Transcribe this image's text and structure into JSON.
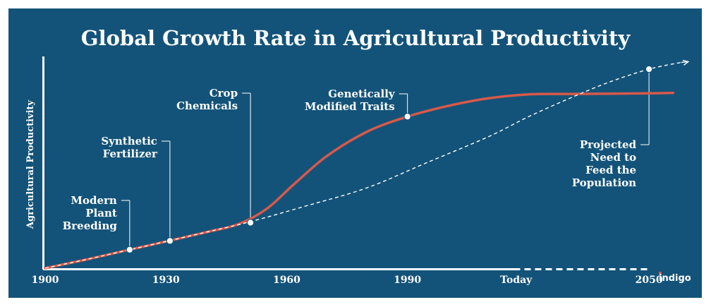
{
  "colors": {
    "background": "#135379",
    "productivity_line": "#d8594a",
    "projection_line": "#ffffff",
    "text": "#ffffff",
    "logo_dot": "#d8594a"
  },
  "logo": {
    "text": "indigo"
  },
  "chart_data": {
    "type": "line",
    "title": "Global Growth Rate in Agricultural Productivity",
    "xlabel": "",
    "ylabel": "Agricultural Productivity",
    "x_ticks": [
      {
        "label": "1900",
        "x": 1900
      },
      {
        "label": "1930",
        "x": 1930
      },
      {
        "label": "1960",
        "x": 1960
      },
      {
        "label": "1990",
        "x": 1990
      },
      {
        "label": "Today",
        "x": 2017
      },
      {
        "label": "2050",
        "x": 2050
      }
    ],
    "x_axis_solid_until": 2018,
    "xlim": [
      1900,
      2064
    ],
    "ylim": [
      0,
      100
    ],
    "y_ticks": [],
    "grid": false,
    "legend": "none",
    "series": [
      {
        "style": "solid",
        "points": [
          [
            1900,
            0
          ],
          [
            1910,
            4
          ],
          [
            1920,
            8.3
          ],
          [
            1930,
            12.6
          ],
          [
            1940,
            17
          ],
          [
            1948,
            20.8
          ],
          [
            1955,
            28
          ],
          [
            1962,
            40
          ],
          [
            1970,
            53
          ],
          [
            1980,
            64.5
          ],
          [
            1990,
            71.6
          ],
          [
            2000,
            76.6
          ],
          [
            2010,
            80.2
          ],
          [
            2020,
            82.1
          ],
          [
            2030,
            82.3
          ],
          [
            2040,
            82.4
          ],
          [
            2050,
            82.6
          ],
          [
            2056,
            82.8
          ]
        ]
      },
      {
        "style": "dashed",
        "points": [
          [
            1900,
            0
          ],
          [
            1910,
            4
          ],
          [
            1920,
            8.3
          ],
          [
            1930,
            12.6
          ],
          [
            1940,
            17
          ],
          [
            1951,
            22
          ],
          [
            1965,
            29.5
          ],
          [
            1980,
            38
          ],
          [
            1995,
            50
          ],
          [
            2010,
            62
          ],
          [
            2020,
            71.5
          ],
          [
            2030,
            80
          ],
          [
            2040,
            87.8
          ],
          [
            2050,
            94
          ],
          [
            2058,
            97.2
          ]
        ]
      }
    ],
    "annotations": [
      {
        "lines": [
          "Modern",
          "Plant",
          "Breeding"
        ],
        "x": 1921,
        "y": 8.7,
        "align": "right"
      },
      {
        "lines": [
          "Synthetic",
          "Fertilizer"
        ],
        "x": 1931,
        "y": 12.9,
        "align": "right"
      },
      {
        "lines": [
          "Crop",
          "Chemicals"
        ],
        "x": 1951,
        "y": 21.5,
        "align": "right"
      },
      {
        "lines": [
          "Genetically",
          "Modified Traits"
        ],
        "x": 1990,
        "y": 71.6,
        "align": "right"
      },
      {
        "lines": [
          "Projected",
          "Need to",
          "Feed the",
          "Population"
        ],
        "x": 2050,
        "y": 94,
        "align": "right"
      }
    ]
  }
}
